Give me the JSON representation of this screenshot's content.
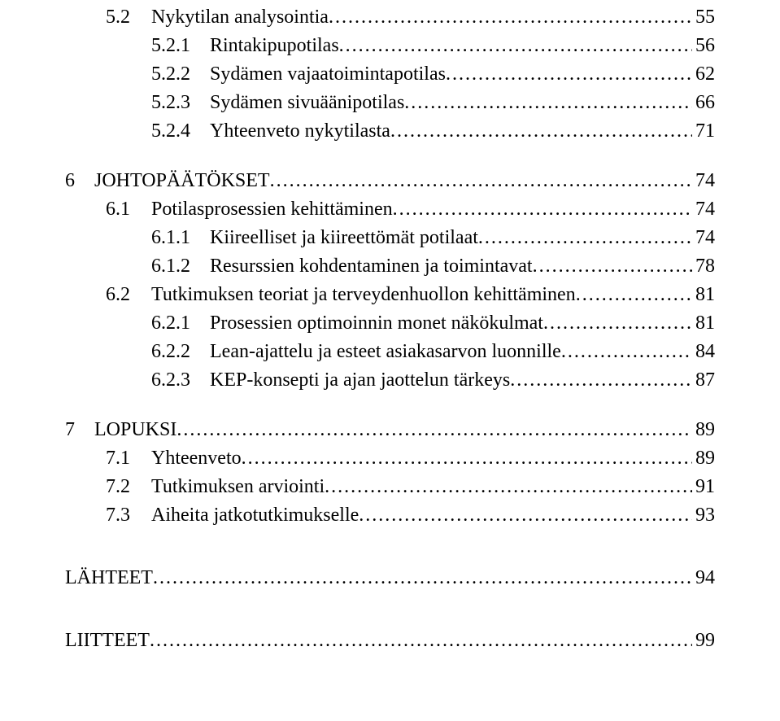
{
  "toc": {
    "font_family": "Times New Roman",
    "text_color": "#000000",
    "background_color": "#ffffff",
    "entries": [
      {
        "level": 2,
        "num": "5.2",
        "title": "Nykytilan analysointia",
        "page": "55"
      },
      {
        "level": 3,
        "num": "5.2.1",
        "title": "Rintakipupotilas",
        "page": "56"
      },
      {
        "level": 3,
        "num": "5.2.2",
        "title": "Sydämen vajaatoimintapotilas",
        "page": "62"
      },
      {
        "level": 3,
        "num": "5.2.3",
        "title": "Sydämen sivuäänipotilas",
        "page": "66"
      },
      {
        "level": 3,
        "num": "5.2.4",
        "title": "Yhteenveto nykytilasta",
        "page": "71"
      },
      {
        "level": 1,
        "num": "6",
        "title": "JOHTOPÄÄTÖKSET",
        "page": "74",
        "gap": true
      },
      {
        "level": 2,
        "num": "6.1",
        "title": "Potilasprosessien kehittäminen",
        "page": "74"
      },
      {
        "level": 3,
        "num": "6.1.1",
        "title": "Kiireelliset ja kiireettömät potilaat",
        "page": "74"
      },
      {
        "level": 3,
        "num": "6.1.2",
        "title": "Resurssien kohdentaminen ja toimintavat",
        "page": "78"
      },
      {
        "level": 2,
        "num": "6.2",
        "title": "Tutkimuksen teoriat ja terveydenhuollon kehittäminen",
        "page": "81"
      },
      {
        "level": 3,
        "num": "6.2.1",
        "title": "Prosessien optimoinnin monet näkökulmat",
        "page": "81"
      },
      {
        "level": 3,
        "num": "6.2.2",
        "title": "Lean-ajattelu ja esteet asiakasarvon luonnille",
        "page": "84"
      },
      {
        "level": 3,
        "num": "6.2.3",
        "title": "KEP-konsepti ja ajan jaottelun tärkeys",
        "page": "87"
      },
      {
        "level": 1,
        "num": "7",
        "title": "LOPUKSI",
        "page": "89",
        "gap": true
      },
      {
        "level": 2,
        "num": "7.1",
        "title": "Yhteenveto",
        "page": "89"
      },
      {
        "level": 2,
        "num": "7.2",
        "title": "Tutkimuksen arviointi",
        "page": "91"
      },
      {
        "level": 2,
        "num": "7.3",
        "title": "Aiheita jatkotutkimukselle",
        "page": "93"
      }
    ],
    "unnumbered": [
      {
        "title": "LÄHTEET",
        "page": "94"
      },
      {
        "title": "LIITTEET",
        "page": "99"
      }
    ]
  }
}
